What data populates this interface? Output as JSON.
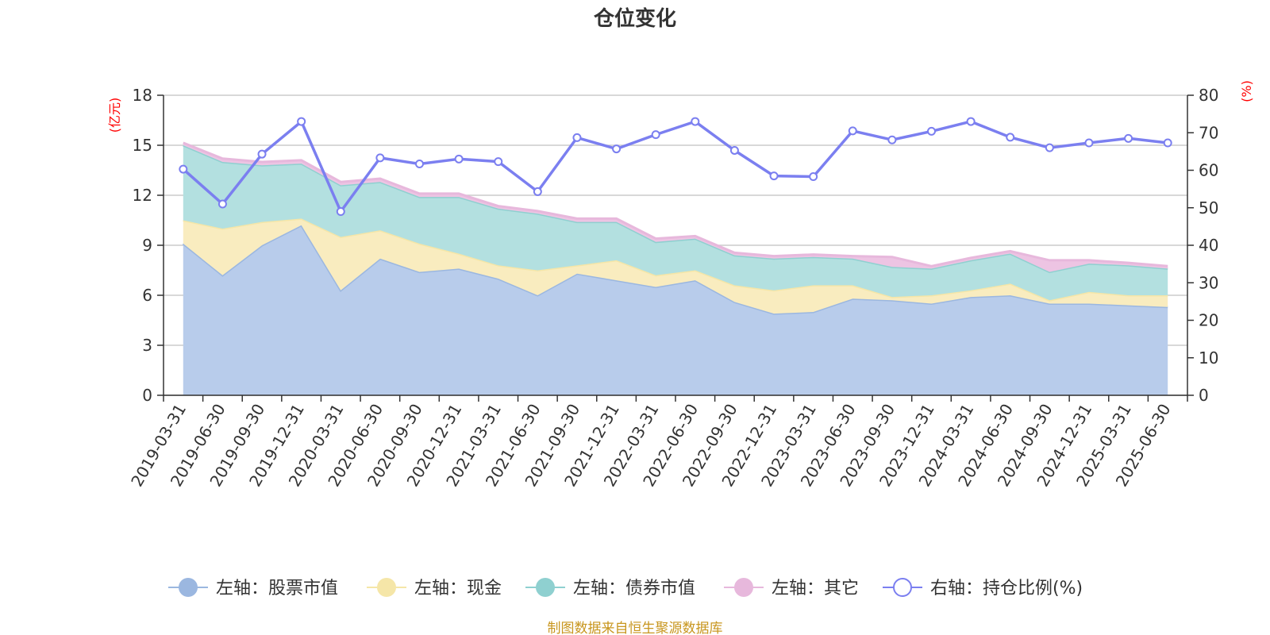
{
  "chart_data": {
    "type": "area",
    "title": "仓位变化",
    "left_axis": {
      "unit": "(亿元)",
      "ylim": [
        0,
        18
      ],
      "ticks": [
        "0",
        "3",
        "6",
        "9",
        "12",
        "15",
        "18"
      ]
    },
    "right_axis": {
      "unit": "(%)",
      "ylim": [
        0,
        80
      ],
      "ticks": [
        "0",
        "10",
        "20",
        "30",
        "40",
        "50",
        "60",
        "70",
        "80"
      ]
    },
    "x": [
      "2019-03-31",
      "2019-06-30",
      "2019-09-30",
      "2019-12-31",
      "2020-03-31",
      "2020-06-30",
      "2020-09-30",
      "2020-12-31",
      "2021-03-31",
      "2021-06-30",
      "2021-09-30",
      "2021-12-31",
      "2022-03-31",
      "2022-06-30",
      "2022-09-30",
      "2022-12-31",
      "2023-03-31",
      "2023-06-30",
      "2023-09-30",
      "2023-12-31",
      "2024-03-31",
      "2024-06-30",
      "2024-09-30",
      "2024-12-31",
      "2025-03-31",
      "2025-06-30"
    ],
    "series": [
      {
        "name": "左轴：股票市值",
        "axis": "left",
        "color": "#9bb7e0",
        "fill": "#b8cceb",
        "values": [
          9.1,
          7.2,
          9.0,
          10.2,
          6.3,
          8.2,
          7.4,
          7.6,
          7.0,
          6.0,
          7.3,
          6.9,
          6.5,
          6.9,
          5.6,
          4.9,
          5.0,
          5.8,
          5.7,
          5.5,
          5.9,
          6.0,
          5.5,
          5.5,
          5.4,
          5.3
        ]
      },
      {
        "name": "左轴：现金",
        "axis": "left",
        "color": "#f5e6a8",
        "fill": "#f9ecbf",
        "values": [
          1.4,
          2.8,
          1.4,
          0.4,
          3.2,
          1.7,
          1.7,
          0.9,
          0.8,
          1.5,
          0.5,
          1.2,
          0.7,
          0.6,
          1.0,
          1.4,
          1.6,
          0.8,
          0.2,
          0.5,
          0.4,
          0.7,
          0.2,
          0.7,
          0.6,
          0.7
        ]
      },
      {
        "name": "左轴：债券市值",
        "axis": "left",
        "color": "#8fd0d0",
        "fill": "#b3e0e0",
        "values": [
          4.5,
          4.0,
          3.4,
          3.3,
          3.1,
          2.9,
          2.8,
          3.4,
          3.4,
          3.4,
          2.6,
          2.3,
          2.0,
          1.9,
          1.8,
          1.9,
          1.7,
          1.6,
          1.8,
          1.6,
          1.8,
          1.8,
          1.7,
          1.7,
          1.8,
          1.6
        ]
      },
      {
        "name": "左轴：其它",
        "axis": "left",
        "color": "#e7b8dc",
        "fill": "#edc4e3",
        "values": [
          0.15,
          0.2,
          0.2,
          0.2,
          0.2,
          0.2,
          0.2,
          0.2,
          0.15,
          0.15,
          0.2,
          0.2,
          0.2,
          0.15,
          0.15,
          0.15,
          0.15,
          0.15,
          0.6,
          0.15,
          0.15,
          0.15,
          0.7,
          0.2,
          0.15,
          0.15
        ]
      },
      {
        "name": "右轴：持仓比例(%)",
        "axis": "right",
        "color": "#7b7ff0",
        "values": [
          60.3,
          51.0,
          64.3,
          73.0,
          49.0,
          63.3,
          61.7,
          63.0,
          62.3,
          54.3,
          68.7,
          65.7,
          69.5,
          73.0,
          65.3,
          58.5,
          58.3,
          70.5,
          68.1,
          70.4,
          73.0,
          68.8,
          66.0,
          67.3,
          68.5,
          67.3
        ]
      }
    ],
    "grid": true,
    "legend": "bottom"
  },
  "footer": {
    "source": "制图数据来自恒生聚源数据库"
  }
}
